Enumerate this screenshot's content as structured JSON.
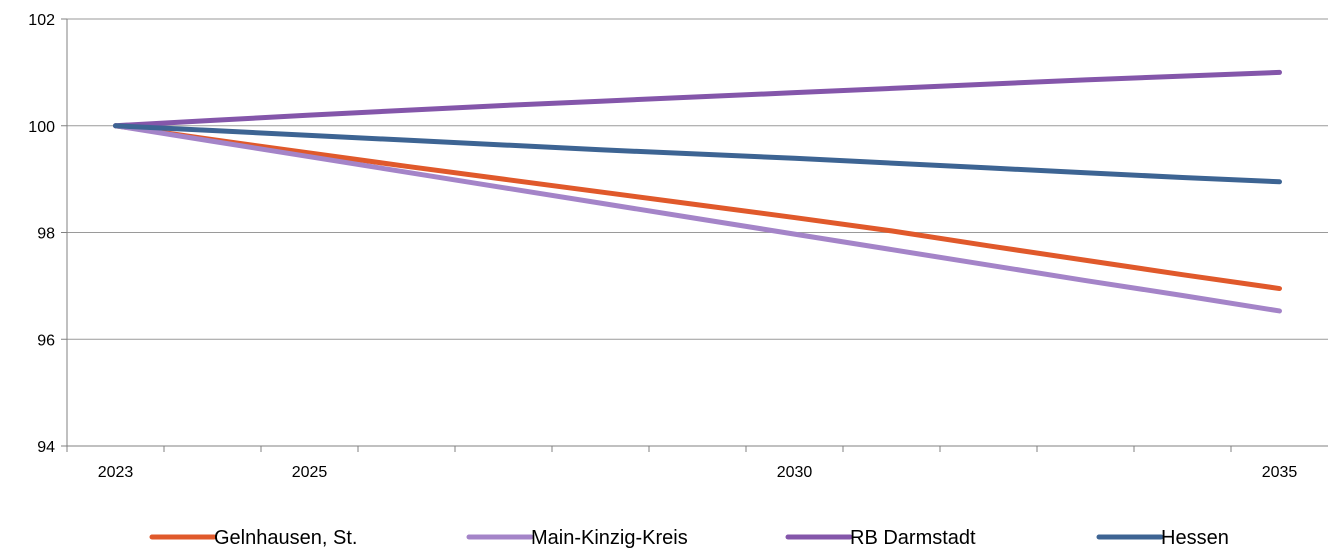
{
  "chart_data": {
    "type": "line",
    "title": "",
    "xlabel": "",
    "ylabel": "",
    "x": [
      2023,
      2024,
      2025,
      2026,
      2027,
      2028,
      2029,
      2030,
      2031,
      2032,
      2033,
      2034,
      2035
    ],
    "x_tick_labels": [
      "2023",
      "2025",
      "2030",
      "2035"
    ],
    "x_tick_label_years": [
      2023,
      2025,
      2030,
      2035
    ],
    "xlim": [
      2022.5,
      2035.5
    ],
    "ylim": [
      94,
      102
    ],
    "y_ticks": [
      94,
      96,
      98,
      100,
      102
    ],
    "grid": true,
    "legend_position": "bottom",
    "series": [
      {
        "name": "Gelnhausen, St.",
        "color": "#e0592b",
        "values": [
          100,
          99.74,
          99.49,
          99.24,
          99.0,
          98.76,
          98.52,
          98.28,
          98.03,
          97.75,
          97.48,
          97.21,
          96.95
        ]
      },
      {
        "name": "Main-Kinzig-Kreis",
        "color": "#a484c8",
        "values": [
          100,
          99.71,
          99.42,
          99.13,
          98.84,
          98.55,
          98.26,
          97.97,
          97.68,
          97.39,
          97.1,
          96.82,
          96.53
        ]
      },
      {
        "name": "RB Darmstadt",
        "color": "#8456aa",
        "values": [
          100,
          100.1,
          100.2,
          100.29,
          100.38,
          100.46,
          100.54,
          100.62,
          100.7,
          100.78,
          100.86,
          100.93,
          101.0
        ]
      },
      {
        "name": "Hessen",
        "color": "#3d6493",
        "values": [
          100,
          99.91,
          99.82,
          99.73,
          99.64,
          99.55,
          99.47,
          99.39,
          99.3,
          99.21,
          99.12,
          99.03,
          98.95
        ]
      }
    ]
  }
}
